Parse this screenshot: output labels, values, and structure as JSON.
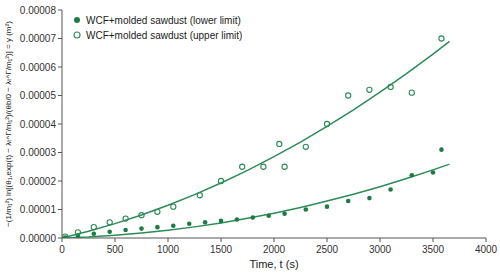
{
  "chart_data": {
    "type": "scatter",
    "xlabel": "Time, t (s)",
    "ylabel": "−(1/m₁²) ln[(θ₁,exp(t) − λₜ^Γ/m₁²)/(θb/0 − λₜ^Γ/m₁²)] = y (m²)",
    "xlim": [
      0,
      4000
    ],
    "ylim": [
      0,
      8e-05
    ],
    "xticks": [
      0,
      500,
      1000,
      1500,
      2000,
      2500,
      3000,
      3500,
      4000
    ],
    "yticks": [
      {
        "value": 0,
        "label": "0.00000"
      },
      {
        "value": 1e-05,
        "label": "0.00001"
      },
      {
        "value": 2e-05,
        "label": "0.00002"
      },
      {
        "value": 3e-05,
        "label": "0.00003"
      },
      {
        "value": 4e-05,
        "label": "0.00004"
      },
      {
        "value": 5e-05,
        "label": "0.00005"
      },
      {
        "value": 6e-05,
        "label": "0.00006"
      },
      {
        "value": 7e-05,
        "label": "0.00007"
      },
      {
        "value": 8e-05,
        "label": "0.00008"
      }
    ],
    "grid": false,
    "legend": "upper left",
    "series": [
      {
        "type": "line",
        "color": "#2e8a57",
        "line_style": "solid",
        "x": [
          0,
          250,
          500,
          750,
          1000,
          1250,
          1500,
          1750,
          2000,
          2250,
          2500,
          2750,
          3000,
          3250,
          3500,
          3650
        ],
        "values": [
          0,
          3.687e-07,
          9.434e-07,
          1.7239e-06,
          2.7103e-06,
          3.9026e-06,
          5.3009e-06,
          6.905e-06,
          8.715e-06,
          1.07309e-05,
          1.29528e-05,
          1.53805e-05,
          1.80141e-05,
          2.08536e-05,
          2.38991e-05,
          2.58251e-05
        ]
      },
      {
        "type": "line",
        "color": "#2e8a57",
        "line_style": "solid",
        "x": [
          0,
          250,
          500,
          750,
          1000,
          1250,
          1500,
          1750,
          2000,
          2250,
          2500,
          2750,
          3000,
          3250,
          3500,
          3650
        ],
        "values": [
          0,
          2.35e-06,
          5.0477e-06,
          8.0931e-06,
          1.14862e-05,
          1.5227e-05,
          1.93156e-05,
          2.37519e-05,
          2.85358e-05,
          3.36675e-05,
          3.91469e-05,
          4.4974e-05,
          5.11488e-05,
          5.76713e-05,
          6.45416e-05,
          6.88307e-05
        ]
      },
      {
        "type": "scatter",
        "name": "WCF+molded sawdust (lower limit)",
        "color": "#1f7a47",
        "marker": "circle",
        "x": [
          30,
          150,
          300,
          450,
          600,
          750,
          900,
          1050,
          1200,
          1350,
          1500,
          1650,
          1800,
          1950,
          2100,
          2300,
          2500,
          2700,
          2900,
          3100,
          3300,
          3500,
          3580
        ],
        "values": [
          2e-07,
          8e-07,
          1.5e-06,
          2.2e-06,
          2.8e-06,
          3.3e-06,
          3.8e-06,
          4.3e-06,
          5e-06,
          5.5e-06,
          6e-06,
          6.5e-06,
          7.2e-06,
          7.8e-06,
          8.5e-06,
          1e-05,
          1.1e-05,
          1.3e-05,
          1.4e-05,
          1.7e-05,
          2.2e-05,
          2.3e-05,
          3.1e-05
        ]
      },
      {
        "type": "scatter",
        "name": "WCF+molded sawdust (upper limit)",
        "color": "#2e8a57",
        "marker": "circle-open",
        "x": [
          30,
          150,
          300,
          450,
          600,
          750,
          900,
          1050,
          1300,
          1500,
          1700,
          1900,
          2050,
          2100,
          2300,
          2500,
          2700,
          2900,
          3100,
          3300,
          3580
        ],
        "values": [
          5e-07,
          2e-06,
          3.8e-06,
          5.5e-06,
          6.8e-06,
          8e-06,
          9.2e-06,
          1.1e-05,
          1.5e-05,
          2e-05,
          2.5e-05,
          2.5e-05,
          3.3e-05,
          2.5e-05,
          3.2e-05,
          4e-05,
          5e-05,
          5.2e-05,
          5.3e-05,
          5.1e-05,
          7e-05
        ]
      }
    ]
  }
}
